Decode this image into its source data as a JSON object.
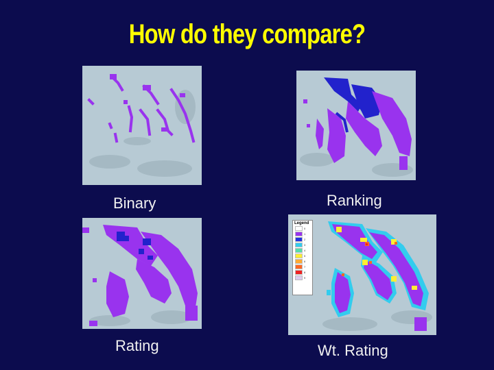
{
  "slide": {
    "title": "How do they compare?"
  },
  "panels": [
    {
      "caption": "Binary"
    },
    {
      "caption": "Ranking"
    },
    {
      "caption": "Rating"
    },
    {
      "caption": "Wt. Rating"
    }
  ],
  "legend": {
    "title": "Legend",
    "items": [
      {
        "label": "0",
        "color": "#ffffff"
      },
      {
        "label": "1",
        "color": "#9933ee"
      },
      {
        "label": "2",
        "color": "#2233dd"
      },
      {
        "label": "3",
        "color": "#33ccee"
      },
      {
        "label": "4",
        "color": "#55ddaa"
      },
      {
        "label": "5",
        "color": "#ffee33"
      },
      {
        "label": "6",
        "color": "#ffaa33"
      },
      {
        "label": "7",
        "color": "#ff6622"
      },
      {
        "label": "8",
        "color": "#ee2222"
      },
      {
        "label": "9",
        "color": "#ddccee"
      }
    ]
  },
  "colors": {
    "background": "#0c0c4e",
    "title": "#ffff00",
    "terrain": "#b4c8d2",
    "purple": "#9933ee",
    "blue": "#2222cc",
    "cyan": "#33ccee"
  }
}
